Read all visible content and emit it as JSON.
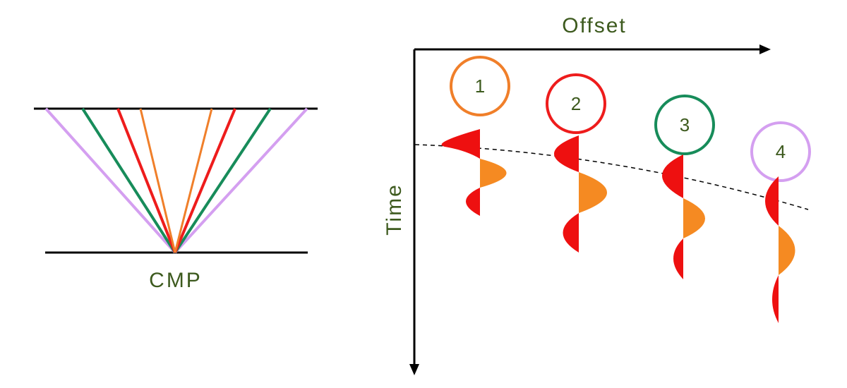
{
  "left_panel": {
    "label": "CMP",
    "rays": [
      {
        "color": "#f07f2a",
        "name": "ray-near"
      },
      {
        "color": "#ee1c1c",
        "name": "ray-mid-near"
      },
      {
        "color": "#178c5a",
        "name": "ray-mid-far"
      },
      {
        "color": "#d49ff0",
        "name": "ray-far"
      }
    ]
  },
  "right_panel": {
    "x_axis_label": "Offset",
    "y_axis_label": "Time",
    "traces": [
      {
        "number": "1",
        "color": "#f07f2a"
      },
      {
        "number": "2",
        "color": "#ee1c1c"
      },
      {
        "number": "3",
        "color": "#178c5a"
      },
      {
        "number": "4",
        "color": "#d49ff0"
      }
    ],
    "wavelet_colors": {
      "negative": "#ee1010",
      "positive": "#f58a22"
    },
    "moveout_curve": "dashed"
  }
}
